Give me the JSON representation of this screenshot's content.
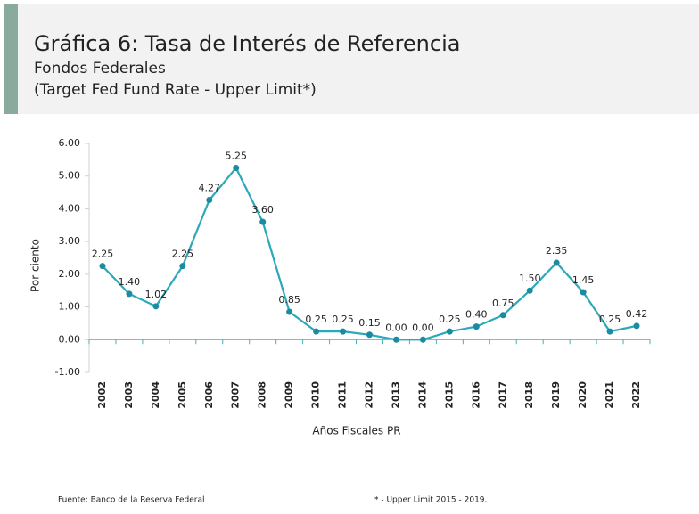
{
  "title": "Gráfica 6: Tasa de Interés de Referencia",
  "subtitle": "Fondos Federales",
  "subtitle2": "(Target Fed Fund Rate - Upper Limit*)",
  "chart_data": {
    "type": "line",
    "x_label": "Años Fiscales PR",
    "y_label": "Por ciento",
    "categories": [
      "2002",
      "2003",
      "2004",
      "2005",
      "2006",
      "2007",
      "2008",
      "2009",
      "2010",
      "2011",
      "2012",
      "2013",
      "2014",
      "2015",
      "2016",
      "2017",
      "2018",
      "2019",
      "2020",
      "2021",
      "2022"
    ],
    "values": [
      2.25,
      1.4,
      1.02,
      2.25,
      4.27,
      5.25,
      3.6,
      0.85,
      0.25,
      0.25,
      0.15,
      0.0,
      0.0,
      0.25,
      0.4,
      0.75,
      1.5,
      2.35,
      1.45,
      0.25,
      0.42
    ],
    "value_labels": [
      "2.25",
      "1.40",
      "1.02",
      "2.25",
      "4.27",
      "5.25",
      "3.60",
      "0.85",
      "0.25",
      "0.25",
      "0.15",
      "0.00",
      "0.00",
      "0.25",
      "0.40",
      "0.75",
      "1.50",
      "2.35",
      "1.45",
      "0.25",
      "0.42"
    ],
    "color": "#2aa9b9",
    "marker_color": "#1a8ba0",
    "ylim": [
      -1,
      6
    ],
    "yticks": [
      {
        "value": -1,
        "label": "-1.00"
      },
      {
        "value": 0,
        "label": "0.00"
      },
      {
        "value": 1,
        "label": "1.00"
      },
      {
        "value": 2,
        "label": "2.00"
      },
      {
        "value": 3,
        "label": "3.00"
      },
      {
        "value": 4,
        "label": "4.00"
      },
      {
        "value": 5,
        "label": "5.00"
      },
      {
        "value": 6,
        "label": "6.00"
      }
    ],
    "grid": false
  },
  "footer": {
    "source": "Fuente: Banco de la Reserva Federal",
    "note": "* - Upper Limit 2015 - 2019."
  }
}
